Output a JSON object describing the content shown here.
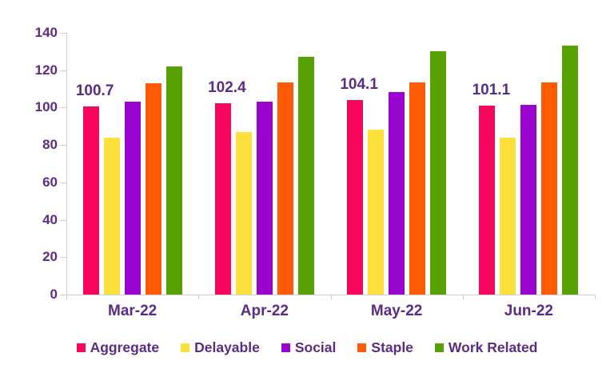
{
  "page": {
    "background": "#ffffff",
    "text_color": "#5B2C87",
    "axis_color": "#cccccc"
  },
  "chart_data": {
    "type": "bar",
    "title": "",
    "xlabel": "",
    "ylabel": "",
    "categories": [
      "Mar-22",
      "Apr-22",
      "May-22",
      "Jun-22"
    ],
    "series": [
      {
        "name": "Aggregate",
        "color": "#F5055C",
        "values": [
          100.7,
          102.4,
          104.1,
          101.1
        ],
        "data_labels": [
          "100.7",
          "102.4",
          "104.1",
          "101.1"
        ]
      },
      {
        "name": "Delayable",
        "color": "#FEE03C",
        "values": [
          84,
          87,
          88,
          84
        ]
      },
      {
        "name": "Social",
        "color": "#9A04CF",
        "values": [
          103,
          103,
          108.5,
          101.5
        ]
      },
      {
        "name": "Staple",
        "color": "#FE5A03",
        "values": [
          113,
          113.5,
          113.5,
          113.5
        ]
      },
      {
        "name": "Work Related",
        "color": "#58A102",
        "values": [
          122,
          127,
          130,
          133
        ]
      }
    ],
    "ylim": [
      0,
      140
    ],
    "yticks": [
      "0",
      "20",
      "40",
      "60",
      "80",
      "100",
      "120",
      "140"
    ],
    "grid": false,
    "legend_position": "bottom",
    "legend_labels": [
      "Aggregate",
      "Delayable",
      "Social",
      "Staple",
      "Work Related"
    ]
  }
}
